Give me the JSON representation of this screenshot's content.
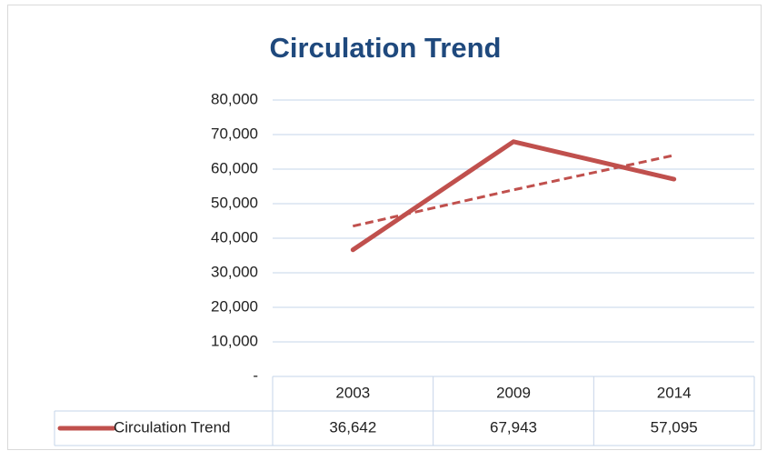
{
  "chart_data": {
    "type": "line",
    "title": "Circulation Trend",
    "categories": [
      "2003",
      "2009",
      "2014"
    ],
    "series": [
      {
        "name": "Circulation Trend",
        "color": "#c0504d",
        "values": [
          36642,
          67943,
          57095
        ],
        "value_labels": [
          "36,642",
          "67,943",
          "57,095"
        ]
      }
    ],
    "trendline": {
      "style": "dashed",
      "values": [
        43500,
        54000,
        64000
      ]
    },
    "ylim": [
      0,
      80000
    ],
    "yticks": [
      {
        "value": 0,
        "label": "-"
      },
      {
        "value": 10000,
        "label": "10,000"
      },
      {
        "value": 20000,
        "label": "20,000"
      },
      {
        "value": 30000,
        "label": "30,000"
      },
      {
        "value": 40000,
        "label": "40,000"
      },
      {
        "value": 50000,
        "label": "50,000"
      },
      {
        "value": 60000,
        "label": "60,000"
      },
      {
        "value": 70000,
        "label": "70,000"
      },
      {
        "value": 80000,
        "label": "80,000"
      }
    ],
    "grid": true,
    "data_table": true
  }
}
